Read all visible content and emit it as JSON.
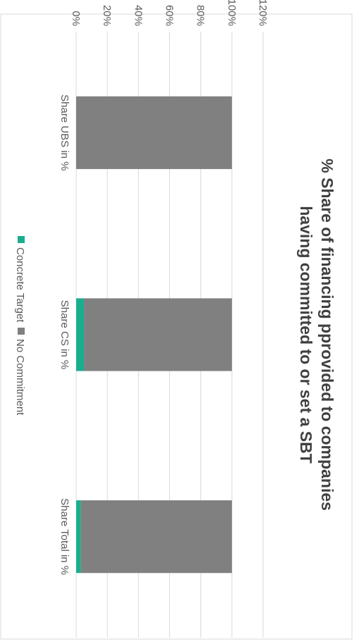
{
  "chart_data": {
    "type": "bar",
    "stacked": true,
    "orientation": "rotated-90-clockwise",
    "title": "% Share of financing pprovided to companies having committed to or set a SBT",
    "title_lines": [
      "% Share of financing pprovided to companies",
      "having committed to or set a SBT"
    ],
    "categories": [
      "Share UBS in %",
      "Share CS in %",
      "Share Total in %"
    ],
    "series": [
      {
        "name": "Concrete Target",
        "color": "#1aae8e",
        "values": [
          0,
          5,
          3
        ]
      },
      {
        "name": "No Commitment",
        "color": "#808080",
        "values": [
          100,
          95,
          97
        ]
      }
    ],
    "ylim": [
      0,
      120
    ],
    "y_ticks": [
      "0%",
      "20%",
      "40%",
      "60%",
      "80%",
      "100%",
      "120%"
    ],
    "grid": true,
    "legend_position": "bottom"
  },
  "colors": {
    "gridline": "#d9d9d9",
    "axis_text": "#595959",
    "title_text": "#404040",
    "frame": "#d9d9d9"
  }
}
